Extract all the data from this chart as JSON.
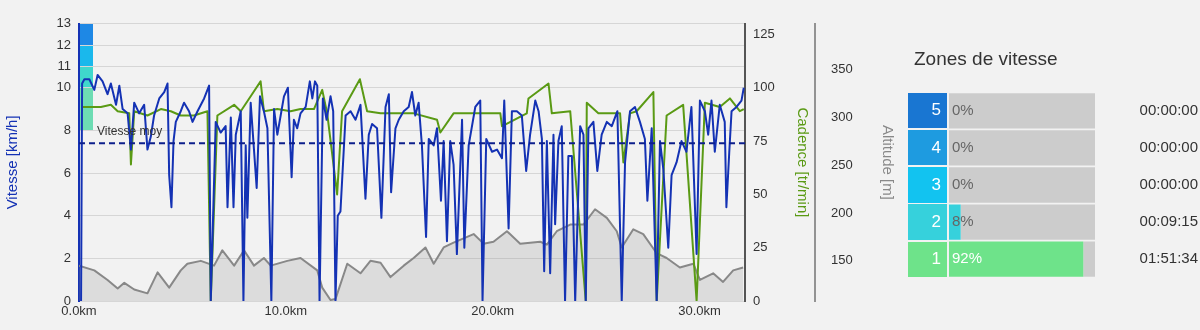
{
  "chart_data": [
    {
      "type": "line",
      "ylabel": "Vitesse [km/h]",
      "y2label": "Cadence [tr/min]",
      "y3label": "Altitude [m]",
      "xlim": [
        0,
        32.2
      ],
      "xticks": [
        {
          "value": 0,
          "label": "0.0km"
        },
        {
          "value": 10,
          "label": "10.0km"
        },
        {
          "value": 20,
          "label": "20.0km"
        },
        {
          "value": 30,
          "label": "30.0km"
        }
      ],
      "ylim": [
        0,
        13
      ],
      "yticks": [
        0,
        2,
        4,
        6,
        8,
        10,
        11,
        12,
        13
      ],
      "y2lim": [
        0,
        130
      ],
      "y2ticks": [
        0,
        25,
        50,
        75,
        100,
        125
      ],
      "y3lim": [
        108,
        398
      ],
      "y3ticks": [
        150,
        200,
        250,
        300,
        350
      ],
      "grid": "y",
      "line_style": "solid",
      "ref_lines": [
        {
          "axis": "y",
          "value": 7.4,
          "label": "Vitesse moy",
          "color": "#0d1f8c",
          "line_style": "dashed"
        }
      ],
      "series": [
        {
          "type": "area",
          "axis": "y3",
          "color": "#888888",
          "x": [
            0,
            0.74,
            1.38,
            1.87,
            2.19,
            2.67,
            3.31,
            3.8,
            4.36,
            4.92,
            5.24,
            5.89,
            6.53,
            6.93,
            7.5,
            7.98,
            8.46,
            8.94,
            9.27,
            10.07,
            10.71,
            11.52,
            11.76,
            12.16,
            12.4,
            12.97,
            13.61,
            14.09,
            14.58,
            15.06,
            15.7,
            16.18,
            16.75,
            17.15,
            17.63,
            18.11,
            19.08,
            19.56,
            20.04,
            20.69,
            21.33,
            22.3,
            22.62,
            23.1,
            23.75,
            24.39,
            24.95,
            25.52,
            26,
            26.24,
            26.8,
            27.28,
            27.93,
            28.41,
            29.05,
            29.7,
            30.02,
            30.66,
            31.14,
            31.63,
            32.11
          ],
          "values": [
            145,
            140,
            130,
            121,
            127,
            120,
            116,
            138,
            122,
            140,
            147,
            150,
            145,
            161,
            145,
            161,
            145,
            153,
            145,
            150,
            153,
            140,
            122,
            109,
            110,
            147,
            137,
            150,
            148,
            133,
            145,
            153,
            164,
            147,
            164,
            169,
            178,
            168,
            170,
            181,
            168,
            170,
            167,
            181,
            188,
            188,
            204,
            195,
            181,
            164,
            183,
            178,
            158,
            153,
            143,
            147,
            130,
            137,
            128,
            140,
            143
          ]
        },
        {
          "type": "line",
          "axis": "y2",
          "color": "#5a9a14",
          "x": [
            0.1,
            1.06,
            1.54,
            1.87,
            2.43,
            2.51,
            2.67,
            3.31,
            3.96,
            4.44,
            4.92,
            5.56,
            6.21,
            6.37,
            6.69,
            7.5,
            7.82,
            8.78,
            8.94,
            9.59,
            10.23,
            10.71,
            11.36,
            11.76,
            12,
            12.48,
            12.72,
            13.58,
            13.93,
            14.58,
            15.38,
            16.18,
            17.31,
            17.47,
            18.11,
            19.4,
            20.37,
            20.45,
            21.65,
            21.73,
            22.7,
            22.86,
            23.75,
            24.5,
            24.55,
            25.11,
            26.16,
            26.32,
            26.64,
            26.96,
            27.77,
            27.93,
            28.41,
            29.21,
            29.86,
            30.26,
            30.98,
            31.47,
            31.95,
            32.14
          ],
          "values": [
            91,
            91,
            92,
            89,
            88,
            64,
            89,
            87,
            90,
            89,
            87,
            87,
            89,
            0,
            87,
            92,
            89,
            103,
            89,
            90,
            89,
            90,
            90,
            99,
            88,
            50,
            89,
            104,
            89,
            88,
            88,
            88,
            85,
            79,
            88,
            88,
            88,
            82,
            88,
            95,
            102,
            88,
            89,
            0,
            93,
            88,
            88,
            65,
            88,
            89,
            98,
            0,
            87,
            92,
            0,
            93,
            91,
            95,
            89,
            90
          ]
        },
        {
          "type": "line",
          "axis": "y",
          "color": "#1432b4",
          "x": [
            0.1,
            0.15,
            0.26,
            0.5,
            0.74,
            0.9,
            1.14,
            1.38,
            1.54,
            1.79,
            1.95,
            2.11,
            2.35,
            2.51,
            2.67,
            2.91,
            3.15,
            3.31,
            3.47,
            3.63,
            3.88,
            4.12,
            4.28,
            4.36,
            4.47,
            4.57,
            4.68,
            4.92,
            5.08,
            5.32,
            5.49,
            5.73,
            6.05,
            6.29,
            6.37,
            6.61,
            6.85,
            7.09,
            7.18,
            7.34,
            7.47,
            7.58,
            7.82,
            7.95,
            8.06,
            8.14,
            8.3,
            8.46,
            8.59,
            8.75,
            8.94,
            9.11,
            9.3,
            9.43,
            9.59,
            9.75,
            9.91,
            10.1,
            10.28,
            10.39,
            10.55,
            10.71,
            10.96,
            11.16,
            11.28,
            11.41,
            11.52,
            11.63,
            11.79,
            11.97,
            12.16,
            12.29,
            12.4,
            12.51,
            12.64,
            12.89,
            13.13,
            13.37,
            13.61,
            13.85,
            14.01,
            14.17,
            14.41,
            14.62,
            14.82,
            14.98,
            15.09,
            15.3,
            15.46,
            15.7,
            15.94,
            16.1,
            16.26,
            16.42,
            16.58,
            16.78,
            16.91,
            17.15,
            17.31,
            17.5,
            17.63,
            17.79,
            17.95,
            18.11,
            18.27,
            18.52,
            18.63,
            18.84,
            19.16,
            19.4,
            19.51,
            19.69,
            19.97,
            20.21,
            20.45,
            20.56,
            20.77,
            20.93,
            21.17,
            21.41,
            21.62,
            21.81,
            22.06,
            22.22,
            22.38,
            22.49,
            22.62,
            22.78,
            22.94,
            23.02,
            23.18,
            23.34,
            23.5,
            23.66,
            23.83,
            23.99,
            24.23,
            24.39,
            24.5,
            24.63,
            24.87,
            25.06,
            25.27,
            25.52,
            25.76,
            26.03,
            26.24,
            26.4,
            26.64,
            26.88,
            27.12,
            27.36,
            27.48,
            27.69,
            27.93,
            28.09,
            28.25,
            28.49,
            28.65,
            28.89,
            29.13,
            29.37,
            29.61,
            29.86,
            30.02,
            30.26,
            30.42,
            30.58,
            30.74,
            30.98,
            31.22,
            31.3,
            31.44,
            31.55,
            31.79,
            32.03,
            32.14
          ],
          "values": [
            0,
            10.2,
            10.4,
            10.4,
            9.9,
            10.6,
            10.3,
            9.7,
            10.2,
            9.2,
            10.1,
            9,
            8.8,
            7.1,
            9.3,
            8.8,
            9.2,
            7.1,
            7.7,
            8.7,
            9.5,
            9.8,
            10.2,
            5.9,
            4.4,
            7.5,
            8.4,
            8.9,
            9.3,
            8.9,
            8.4,
            8.9,
            9.5,
            10.1,
            0,
            8.4,
            7.9,
            8.2,
            4.4,
            8.6,
            4.4,
            7.8,
            8.9,
            0,
            7.3,
            3.9,
            9.3,
            7.1,
            5.3,
            9.6,
            8.9,
            8.1,
            0,
            9,
            7.8,
            8.7,
            9.6,
            10,
            5.8,
            8.5,
            8.1,
            8.8,
            9.1,
            10.3,
            9.5,
            10.3,
            10.1,
            0,
            9.5,
            8.5,
            9.6,
            8.9,
            0,
            4,
            4.2,
            8.7,
            8.9,
            8.5,
            9.2,
            4.8,
            7.8,
            8.3,
            8.1,
            3.9,
            9.1,
            9.7,
            5.1,
            8.1,
            8.5,
            8.9,
            9.1,
            9.8,
            8.7,
            9.3,
            7.3,
            3,
            7.6,
            7.3,
            8.1,
            4.7,
            7.5,
            2.8,
            7.5,
            6.4,
            2.2,
            8.5,
            2.5,
            7.3,
            9.1,
            9.4,
            0,
            7.6,
            7,
            7.1,
            6.7,
            9.4,
            3.4,
            8.9,
            8.9,
            8.7,
            6.1,
            7.8,
            9.4,
            8.9,
            7.6,
            1.4,
            7.5,
            1.3,
            7.8,
            3.6,
            7.5,
            8.2,
            0,
            6.8,
            6.8,
            0,
            8.2,
            7.8,
            0,
            8.1,
            8.4,
            6.1,
            7.8,
            8.4,
            8.2,
            8.9,
            0,
            6.5,
            8.9,
            9.1,
            8.4,
            7.6,
            4.7,
            8.1,
            0,
            7.5,
            6.2,
            2.5,
            5.9,
            6.5,
            7.5,
            7,
            9.1,
            2.2,
            9.4,
            8.9,
            7.8,
            9.4,
            7,
            9.2,
            8.4,
            4.4,
            7,
            8.9,
            9.1,
            9.4,
            10
          ]
        }
      ]
    },
    {
      "type": "bar",
      "orientation": "horizontal",
      "title": "Zones de vitesse",
      "categories": [
        "5",
        "4",
        "3",
        "2",
        "1"
      ],
      "y2_categories": [
        "00:00:00",
        "00:00:00",
        "00:00:00",
        "00:09:15",
        "01:51:34"
      ],
      "stacked": true,
      "series": [
        {
          "colors": [
            "#1976d2",
            "#1e9be0",
            "#12c3f0",
            "#36d1dc",
            "#6ee38a"
          ],
          "values": [
            0,
            0,
            0,
            8,
            92
          ],
          "value_labels": [
            "0%",
            "0%",
            "0%",
            "8%",
            "92%"
          ]
        },
        {
          "color": "#cccccc",
          "values": [
            100,
            100,
            100,
            92,
            8
          ]
        }
      ],
      "xlim": [
        0,
        100
      ],
      "tick_labels": "y"
    }
  ]
}
